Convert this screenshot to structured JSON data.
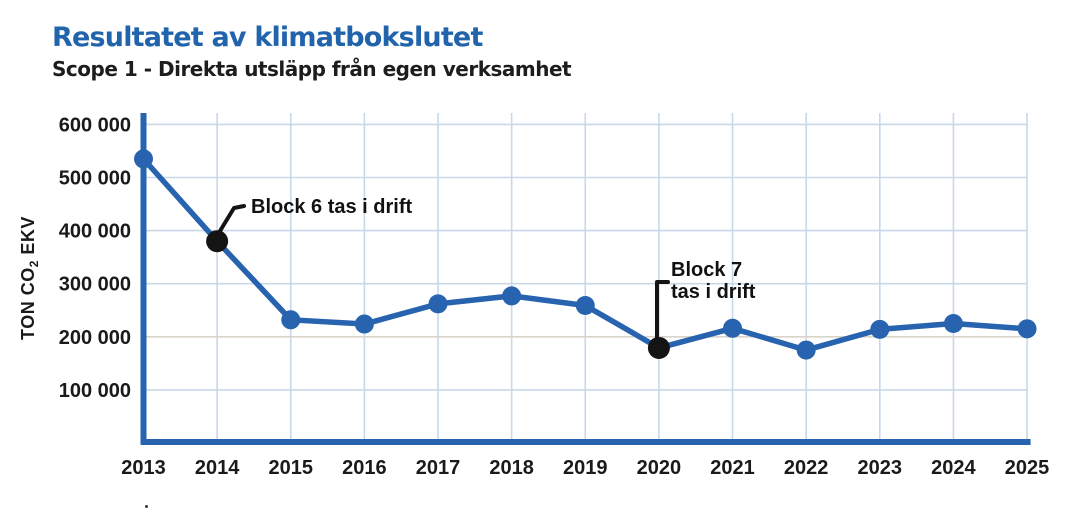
{
  "header": {
    "title": "Resultatet av klimatbokslutet",
    "subtitle": "Scope 1 - Direkta utsläpp från egen verksamhet"
  },
  "colors": {
    "accent_blue": "#2763ae",
    "title_blue": "#2164ac",
    "grid_blue": "#c9d8e9",
    "grid_tan": "#d9d4c9",
    "marker_black": "#141414",
    "text_dark": "#1a1a1a"
  },
  "chart_data": {
    "type": "line",
    "title": "Resultatet av klimatbokslutet",
    "subtitle": "Scope 1 - Direkta utsläpp från egen verksamhet",
    "ylabel": {
      "prefix": "TON CO",
      "sub": "2",
      "suffix": " EKV"
    },
    "x": [
      2013,
      2014,
      2015,
      2016,
      2017,
      2018,
      2019,
      2020,
      2021,
      2022,
      2023,
      2024,
      2025
    ],
    "values": [
      535000,
      380000,
      232000,
      224000,
      262000,
      277000,
      259000,
      179000,
      216000,
      175000,
      214000,
      225000,
      215000
    ],
    "ylim": [
      0,
      600000
    ],
    "ytick_step": 100000,
    "yticks": [
      {
        "value": 100000,
        "label": "100 000"
      },
      {
        "value": 200000,
        "label": "200 000"
      },
      {
        "value": 300000,
        "label": "300 000"
      },
      {
        "value": 400000,
        "label": "400 000"
      },
      {
        "value": 500000,
        "label": "500 000"
      },
      {
        "value": 600000,
        "label": "600 000"
      }
    ],
    "tan_gridline_value": 200000,
    "grid": true,
    "legend": "none",
    "series_color": "#2763ae",
    "annotations": [
      {
        "year": 2014,
        "value": 380000,
        "lines": [
          "Block 6 tas i drift"
        ]
      },
      {
        "year": 2020,
        "value": 179000,
        "lines": [
          "Block 7",
          "tas i drift"
        ]
      }
    ]
  }
}
